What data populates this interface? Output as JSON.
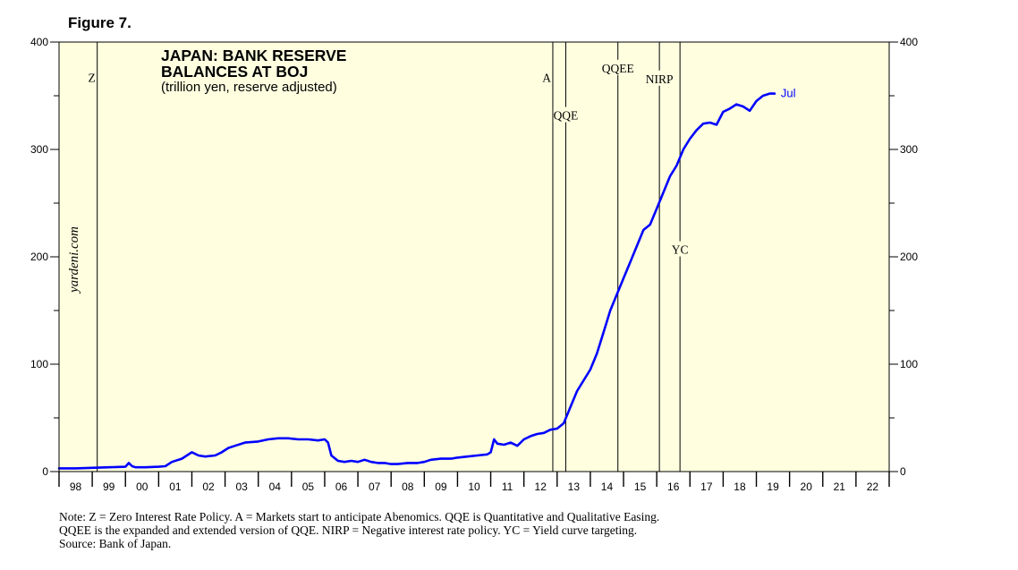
{
  "figure_label": "Figure 7.",
  "chart_data": {
    "type": "line",
    "title": "JAPAN: BANK RESERVE",
    "title_line2": "BALANCES AT BOJ",
    "subtitle": "(trillion yen, reserve adjusted)",
    "watermark": "yardeni.com",
    "ylim": [
      0,
      400
    ],
    "y_ticks": [
      0,
      100,
      200,
      300,
      400
    ],
    "x_range": [
      1998.0,
      2023.0
    ],
    "x_tick_labels": [
      "98",
      "99",
      "00",
      "01",
      "02",
      "03",
      "04",
      "05",
      "06",
      "07",
      "08",
      "09",
      "10",
      "11",
      "12",
      "13",
      "14",
      "15",
      "16",
      "17",
      "18",
      "19",
      "20",
      "21",
      "22"
    ],
    "end_label": "Jul",
    "line_color": "#0000ff",
    "background_color": "#ffffe0",
    "events": [
      {
        "label": "Z",
        "x": 1999.15,
        "label_y": 367,
        "side": "left"
      },
      {
        "label": "A",
        "x": 2012.87,
        "label_y": 367,
        "side": "left"
      },
      {
        "label": "QQE",
        "x": 2013.26,
        "label_y": 332,
        "side": "center"
      },
      {
        "label": "QQEE",
        "x": 2014.83,
        "label_y": 376,
        "side": "center"
      },
      {
        "label": "NIRP",
        "x": 2016.08,
        "label_y": 366,
        "side": "center"
      },
      {
        "label": "YC",
        "x": 2016.7,
        "label_y": 207,
        "side": "center"
      }
    ],
    "series": [
      {
        "name": "Bank reserve balances",
        "x": [
          1998.0,
          1998.5,
          1999.0,
          1999.5,
          2000.0,
          2000.1,
          2000.2,
          2000.3,
          2000.6,
          2001.0,
          2001.2,
          2001.4,
          2001.7,
          2002.0,
          2002.2,
          2002.4,
          2002.7,
          2002.9,
          2003.1,
          2003.3,
          2003.6,
          2004.0,
          2004.3,
          2004.6,
          2004.9,
          2005.2,
          2005.5,
          2005.8,
          2006.0,
          2006.1,
          2006.2,
          2006.4,
          2006.6,
          2006.8,
          2007.0,
          2007.2,
          2007.4,
          2007.6,
          2007.8,
          2008.0,
          2008.2,
          2008.5,
          2008.8,
          2009.0,
          2009.2,
          2009.5,
          2009.8,
          2010.0,
          2010.3,
          2010.6,
          2010.9,
          2011.0,
          2011.1,
          2011.2,
          2011.4,
          2011.6,
          2011.8,
          2012.0,
          2012.2,
          2012.4,
          2012.6,
          2012.8,
          2013.0,
          2013.2,
          2013.4,
          2013.6,
          2013.8,
          2014.0,
          2014.2,
          2014.4,
          2014.6,
          2014.8,
          2015.0,
          2015.2,
          2015.4,
          2015.6,
          2015.8,
          2016.0,
          2016.2,
          2016.4,
          2016.6,
          2016.8,
          2017.0,
          2017.2,
          2017.4,
          2017.6,
          2017.8,
          2018.0,
          2018.2,
          2018.4,
          2018.6,
          2018.8,
          2019.0,
          2019.2,
          2019.4,
          2019.55
        ],
        "values": [
          3,
          3,
          3.5,
          4,
          4.5,
          8,
          5,
          4,
          4,
          4.5,
          5,
          9,
          12,
          18,
          15,
          14,
          15,
          18,
          22,
          24,
          27,
          28,
          30,
          31,
          31,
          30,
          30,
          29,
          30,
          27,
          15,
          10,
          9,
          10,
          9,
          11,
          9,
          8,
          8,
          7,
          7,
          8,
          8,
          9,
          11,
          12,
          12,
          13,
          14,
          15,
          16,
          18,
          30,
          26,
          25,
          27,
          24,
          30,
          33,
          35,
          36,
          39,
          40,
          45,
          60,
          75,
          85,
          95,
          110,
          130,
          150,
          165,
          180,
          195,
          210,
          225,
          230,
          245,
          260,
          275,
          285,
          300,
          310,
          318,
          324,
          325,
          323,
          335,
          338,
          342,
          340,
          336,
          345,
          350,
          352,
          352
        ]
      }
    ],
    "notes": [
      "Note: Z = Zero Interest Rate Policy. A = Markets start to anticipate Abenomics. QQE is Quantitative and Qualitative Easing.",
      "QQEE is the expanded and extended version of QQE. NIRP = Negative interest rate policy. YC = Yield curve targeting.",
      "Source: Bank of Japan."
    ]
  }
}
